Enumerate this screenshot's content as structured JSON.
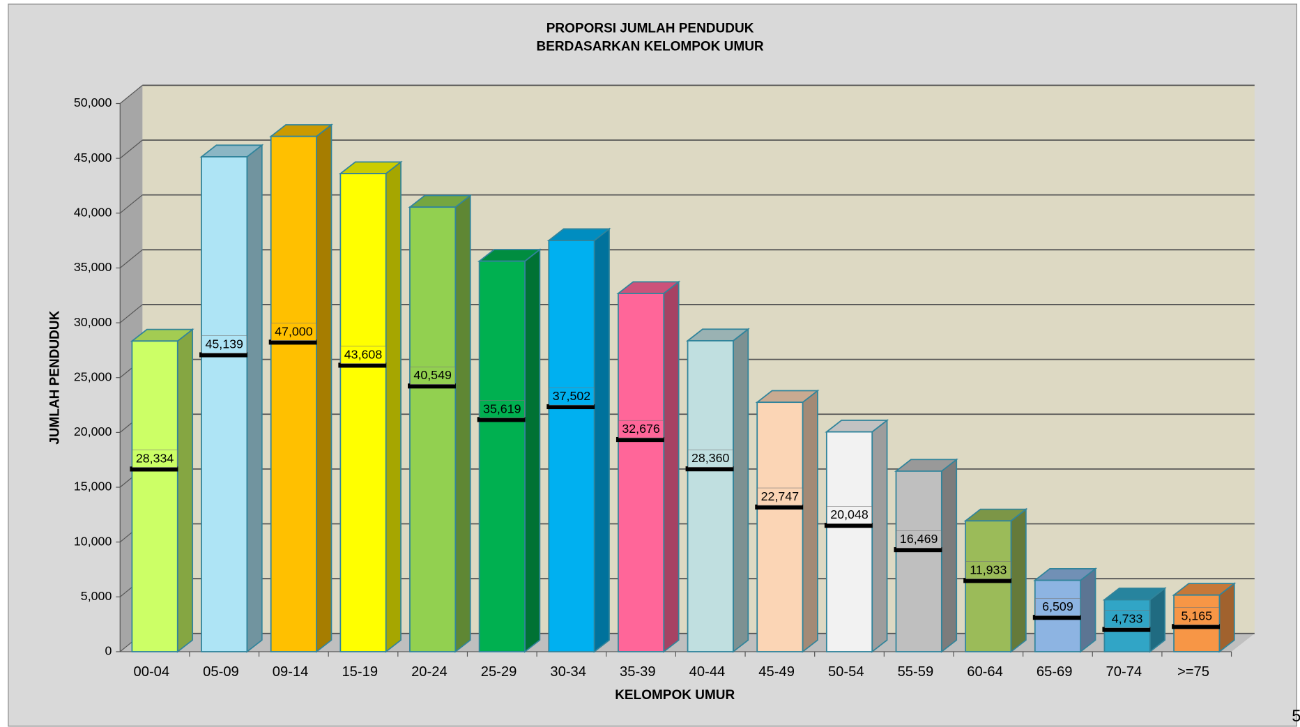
{
  "chart_data": {
    "type": "bar3d",
    "title": [
      "PROPORSI JUMLAH PENDUDUK",
      "BERDASARKAN KELOMPOK UMUR"
    ],
    "x_label": "KELOMPOK UMUR",
    "y_label": "JUMLAH PENDUDUK",
    "categories": [
      "00-04",
      "05-09",
      "09-14",
      "15-19",
      "20-24",
      "25-29",
      "30-34",
      "35-39",
      "40-44",
      "45-49",
      "50-54",
      "55-59",
      "60-64",
      "65-69",
      "70-74",
      ">=75"
    ],
    "values": [
      28334,
      45139,
      47000,
      43608,
      40549,
      35619,
      37502,
      32676,
      28360,
      22747,
      20048,
      16469,
      11933,
      6509,
      4733,
      5165
    ],
    "value_labels": [
      "28,334",
      "45,139",
      "47,000",
      "43,608",
      "40,549",
      "35,619",
      "37,502",
      "32,676",
      "28,360",
      "22,747",
      "20,048",
      "16,469",
      "11,933",
      "6,509",
      "4,733",
      "5,165"
    ],
    "colors": [
      "#ccff66",
      "#aee4f5",
      "#ffc000",
      "#ffff00",
      "#92d050",
      "#00b050",
      "#00b0f0",
      "#ff6699",
      "#c0dfe0",
      "#fbd5b5",
      "#f2f2f2",
      "#bfbfbf",
      "#9bbb59",
      "#8db4e2",
      "#31a5c6",
      "#f79646"
    ],
    "ylim": [
      0,
      50000
    ],
    "yticks": [
      0,
      {
        "value": 5000,
        "label": "5,000"
      },
      {
        "value": 10000,
        "label": "10,000"
      },
      {
        "value": 15000,
        "label": "15,000"
      },
      {
        "value": 20000,
        "label": "20,000"
      },
      {
        "value": 25000,
        "label": "25,000"
      },
      {
        "value": 30000,
        "label": "30,000"
      },
      {
        "value": 35000,
        "label": "35,000"
      },
      {
        "value": 40000,
        "label": "40,000"
      },
      {
        "value": 45000,
        "label": "45,000"
      },
      {
        "value": 50000,
        "label": "50,000"
      }
    ],
    "grid": true
  },
  "page_number": "5"
}
